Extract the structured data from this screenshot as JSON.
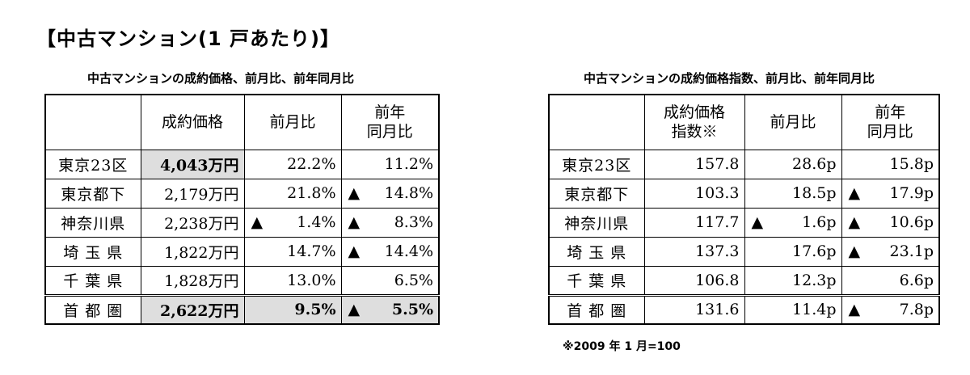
{
  "page_title": "【中古マンション(1 戸あたり)】",
  "left_table": {
    "caption": "中古マンションの成約価格、前月比、前年同月比",
    "headers": {
      "price": "成約価格",
      "mom": "前月比",
      "yoy_line1": "前年",
      "yoy_line2": "同月比"
    },
    "rows": [
      {
        "region": "東京23区",
        "price": "4,043万円",
        "mom_sign": "",
        "mom": "22.2%",
        "yoy_sign": "",
        "yoy": "11.2%",
        "highlight": true
      },
      {
        "region": "東京都下",
        "price": "2,179万円",
        "mom_sign": "",
        "mom": "21.8%",
        "yoy_sign": "▲",
        "yoy": "14.8%",
        "highlight": false
      },
      {
        "region": "神奈川県",
        "price": "2,238万円",
        "mom_sign": "▲",
        "mom": "1.4%",
        "yoy_sign": "▲",
        "yoy": "8.3%",
        "highlight": false
      },
      {
        "region": "埼 玉 県",
        "price": "1,822万円",
        "mom_sign": "",
        "mom": "14.7%",
        "yoy_sign": "▲",
        "yoy": "14.4%",
        "highlight": false
      },
      {
        "region": "千 葉 県",
        "price": "1,828万円",
        "mom_sign": "",
        "mom": "13.0%",
        "yoy_sign": "",
        "yoy": "6.5%",
        "highlight": false
      },
      {
        "region": "首 都 圏",
        "price": "2,622万円",
        "mom_sign": "",
        "mom": "9.5%",
        "yoy_sign": "▲",
        "yoy": "5.5%",
        "highlight": true
      }
    ]
  },
  "right_table": {
    "caption": "中古マンションの成約価格指数、前月比、前年同月比",
    "headers": {
      "index_line1": "成約価格",
      "index_line2": "指数※",
      "mom": "前月比",
      "yoy_line1": "前年",
      "yoy_line2": "同月比"
    },
    "rows": [
      {
        "region": "東京23区",
        "index": "157.8",
        "mom_sign": "",
        "mom": "28.6p",
        "yoy_sign": "",
        "yoy": "15.8p"
      },
      {
        "region": "東京都下",
        "index": "103.3",
        "mom_sign": "",
        "mom": "18.5p",
        "yoy_sign": "▲",
        "yoy": "17.9p"
      },
      {
        "region": "神奈川県",
        "index": "117.7",
        "mom_sign": "▲",
        "mom": "1.6p",
        "yoy_sign": "▲",
        "yoy": "10.6p"
      },
      {
        "region": "埼 玉 県",
        "index": "137.3",
        "mom_sign": "",
        "mom": "17.6p",
        "yoy_sign": "▲",
        "yoy": "23.1p"
      },
      {
        "region": "千 葉 県",
        "index": "106.8",
        "mom_sign": "",
        "mom": "12.3p",
        "yoy_sign": "",
        "yoy": "6.6p"
      },
      {
        "region": "首 都 圏",
        "index": "131.6",
        "mom_sign": "",
        "mom": "11.4p",
        "yoy_sign": "▲",
        "yoy": "7.8p"
      }
    ]
  },
  "footnote": "※2009 年 1 月=100"
}
